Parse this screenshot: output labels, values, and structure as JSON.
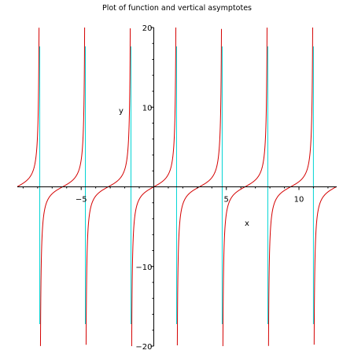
{
  "chart_data": {
    "type": "line",
    "title": "Plot of function and vertical asymptotes",
    "xlabel": "x",
    "ylabel": "y",
    "xlim": [
      -9.4,
      12.6
    ],
    "ylim": [
      -20,
      20
    ],
    "x_ticks": [
      -5,
      5,
      10
    ],
    "y_ticks": [
      -20,
      -10,
      10,
      20
    ],
    "grid": false,
    "series": [
      {
        "function": "tan(x)",
        "color": "#d40000"
      },
      {
        "role": "vertical asymptotes",
        "x": [
          -7.854,
          -4.712,
          -1.571,
          1.571,
          4.712,
          7.854,
          10.996
        ],
        "color": "#00d4d4"
      }
    ]
  }
}
